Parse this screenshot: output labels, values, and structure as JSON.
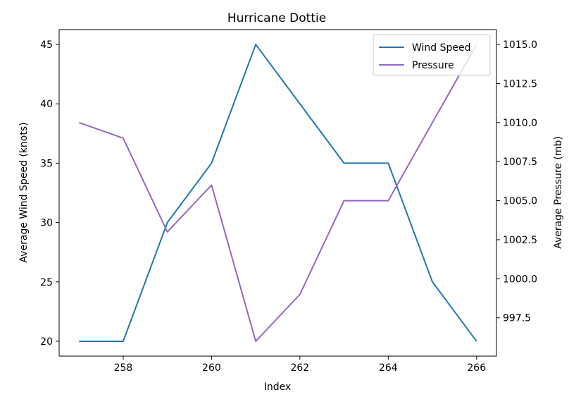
{
  "chart_data": {
    "type": "line",
    "title": "Hurricane Dottie",
    "xlabel": "Index",
    "ylabel_left": "Average Wind Speed (knots)",
    "ylabel_right": "Average Pressure (mb)",
    "x": [
      257,
      258,
      259,
      260,
      261,
      262,
      263,
      264,
      265,
      266
    ],
    "xlim": [
      256.55,
      266.45
    ],
    "xticks": [
      258,
      260,
      262,
      264,
      266
    ],
    "ylim_left": [
      18.75,
      46.25
    ],
    "yticks_left": [
      20,
      25,
      30,
      35,
      40,
      45
    ],
    "ylim_right": [
      995.05,
      1015.95
    ],
    "yticks_right": [
      997.5,
      1000.0,
      1002.5,
      1005.0,
      1007.5,
      1010.0,
      1012.5,
      1015.0
    ],
    "grid": false,
    "legend_position": "upper right",
    "series": [
      {
        "name": "Wind Speed",
        "axis": "left",
        "color": "#1f77b4",
        "values": [
          20,
          20,
          30,
          35,
          45,
          40,
          35,
          35,
          25,
          20
        ]
      },
      {
        "name": "Pressure",
        "axis": "right",
        "color": "#9467bd",
        "values": [
          1010,
          1009,
          1003,
          1006,
          996,
          999,
          1005,
          1005,
          1010,
          1015
        ]
      }
    ]
  }
}
